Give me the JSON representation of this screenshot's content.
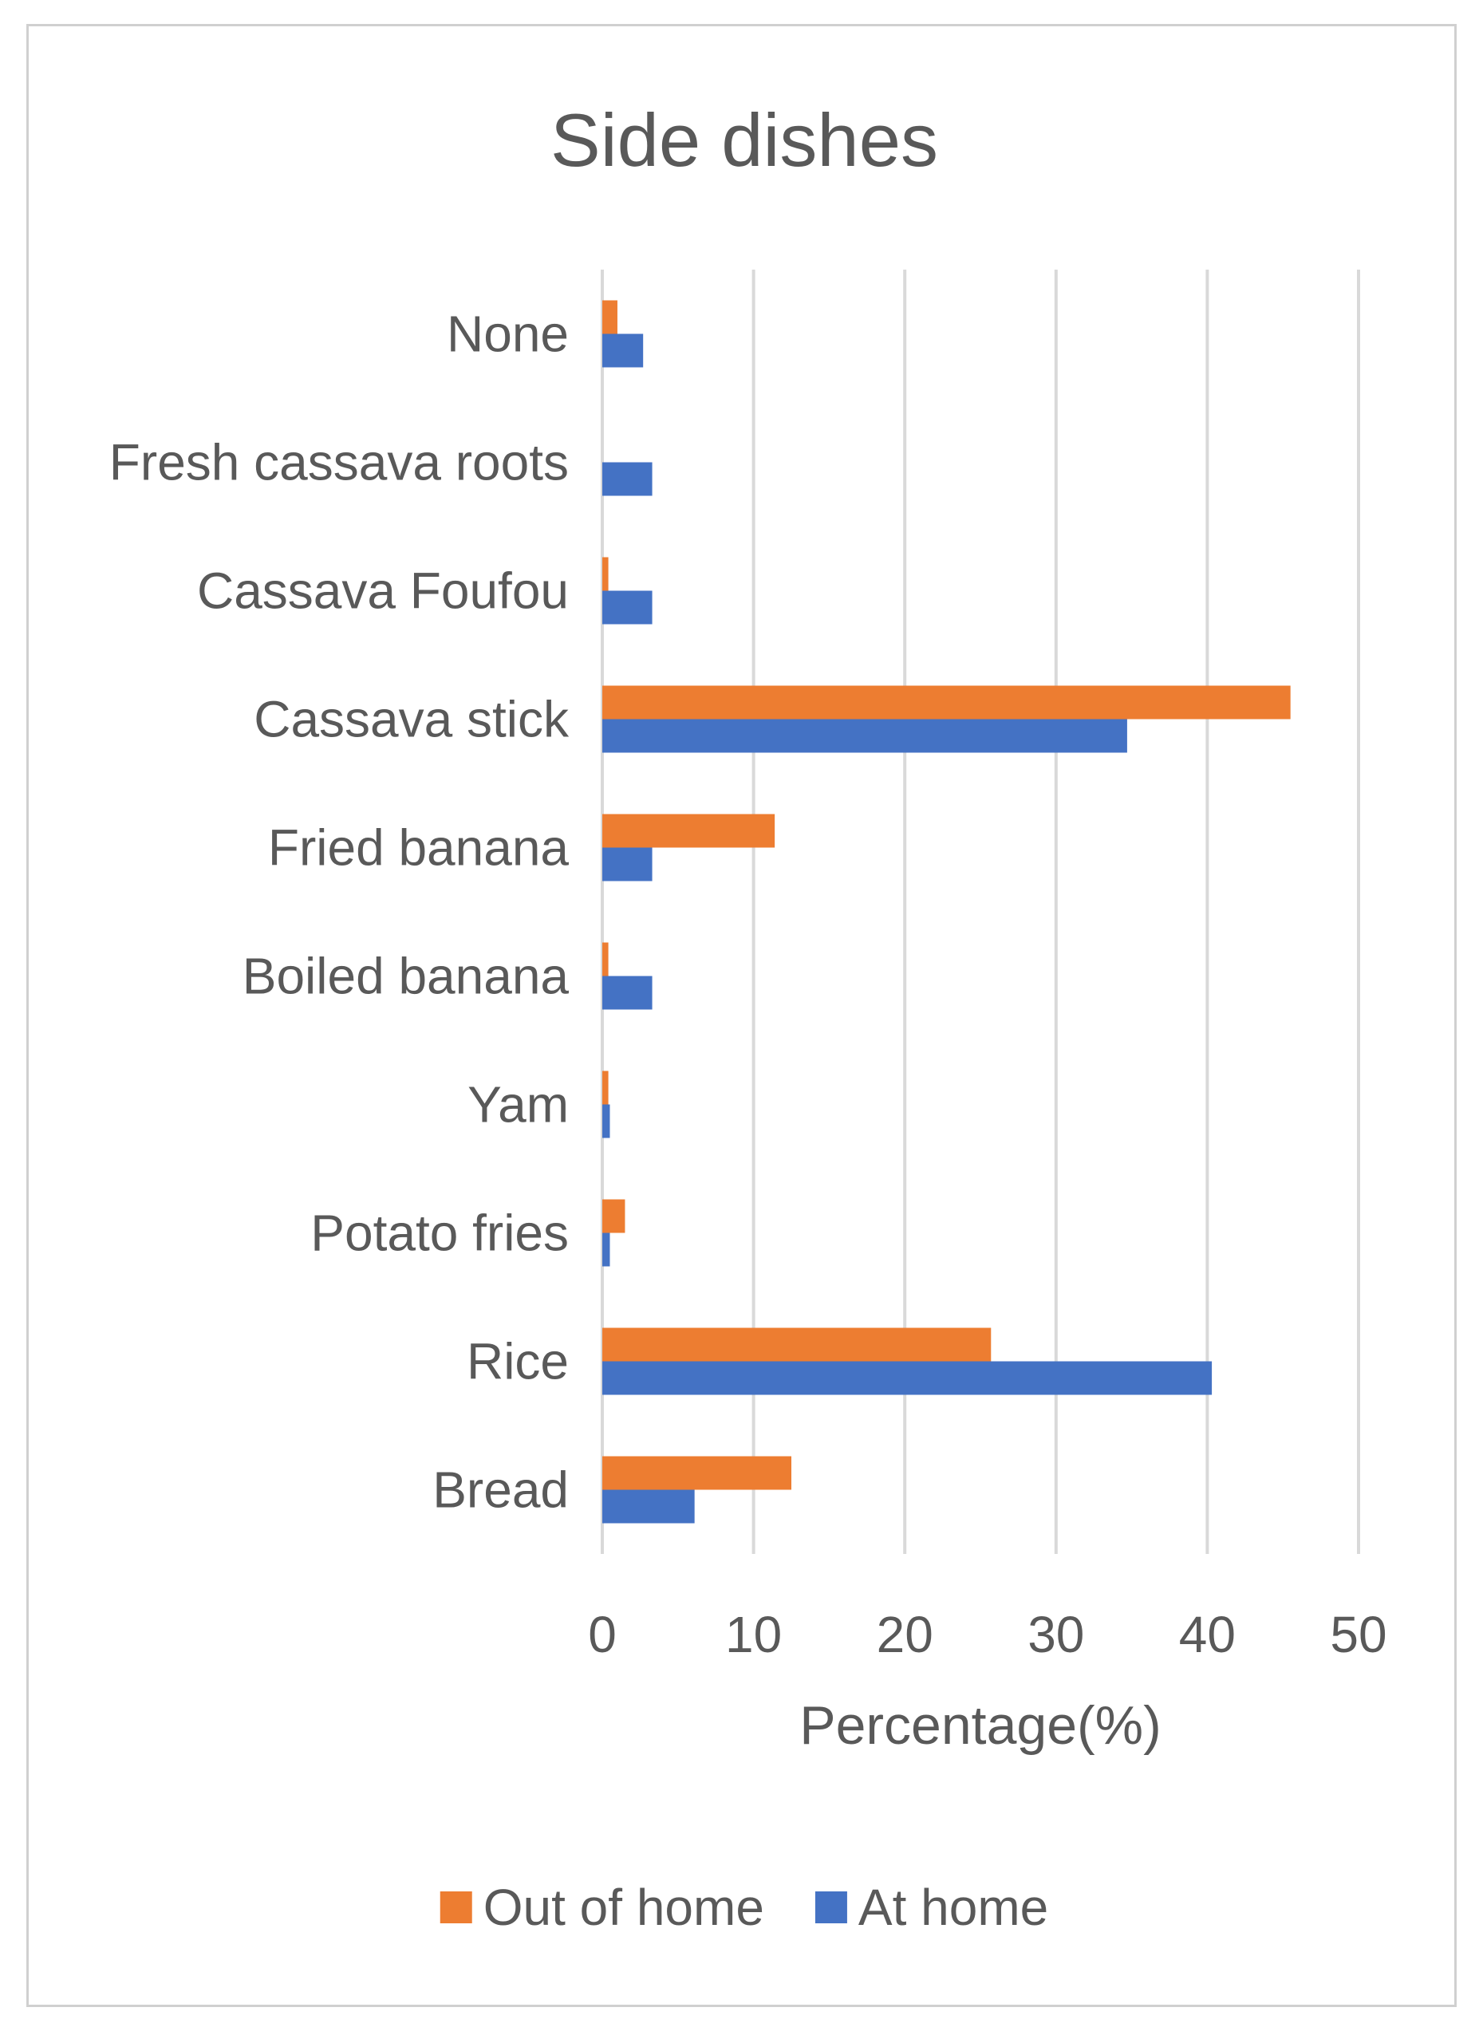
{
  "chart_data": {
    "type": "bar",
    "orientation": "horizontal",
    "title": "Side dishes",
    "xlabel": "Percentage(%)",
    "ylabel": "",
    "xlim": [
      0,
      50
    ],
    "xticks": [
      0,
      10,
      20,
      30,
      40,
      50
    ],
    "grid": true,
    "legend_position": "bottom",
    "categories": [
      "None",
      "Fresh cassava roots",
      "Cassava Foufou",
      "Cassava stick",
      "Fried banana",
      "Boiled banana",
      "Yam",
      "Potato fries",
      "Rice",
      "Bread"
    ],
    "series": [
      {
        "name": "Out of home",
        "color": "#ED7D31",
        "values": [
          1.0,
          0.0,
          0.4,
          45.5,
          11.4,
          0.4,
          0.4,
          1.5,
          25.7,
          12.5
        ]
      },
      {
        "name": "At home",
        "color": "#4472C4",
        "values": [
          2.7,
          3.3,
          3.3,
          34.7,
          3.3,
          3.3,
          0.5,
          0.5,
          40.3,
          6.1
        ]
      }
    ]
  }
}
